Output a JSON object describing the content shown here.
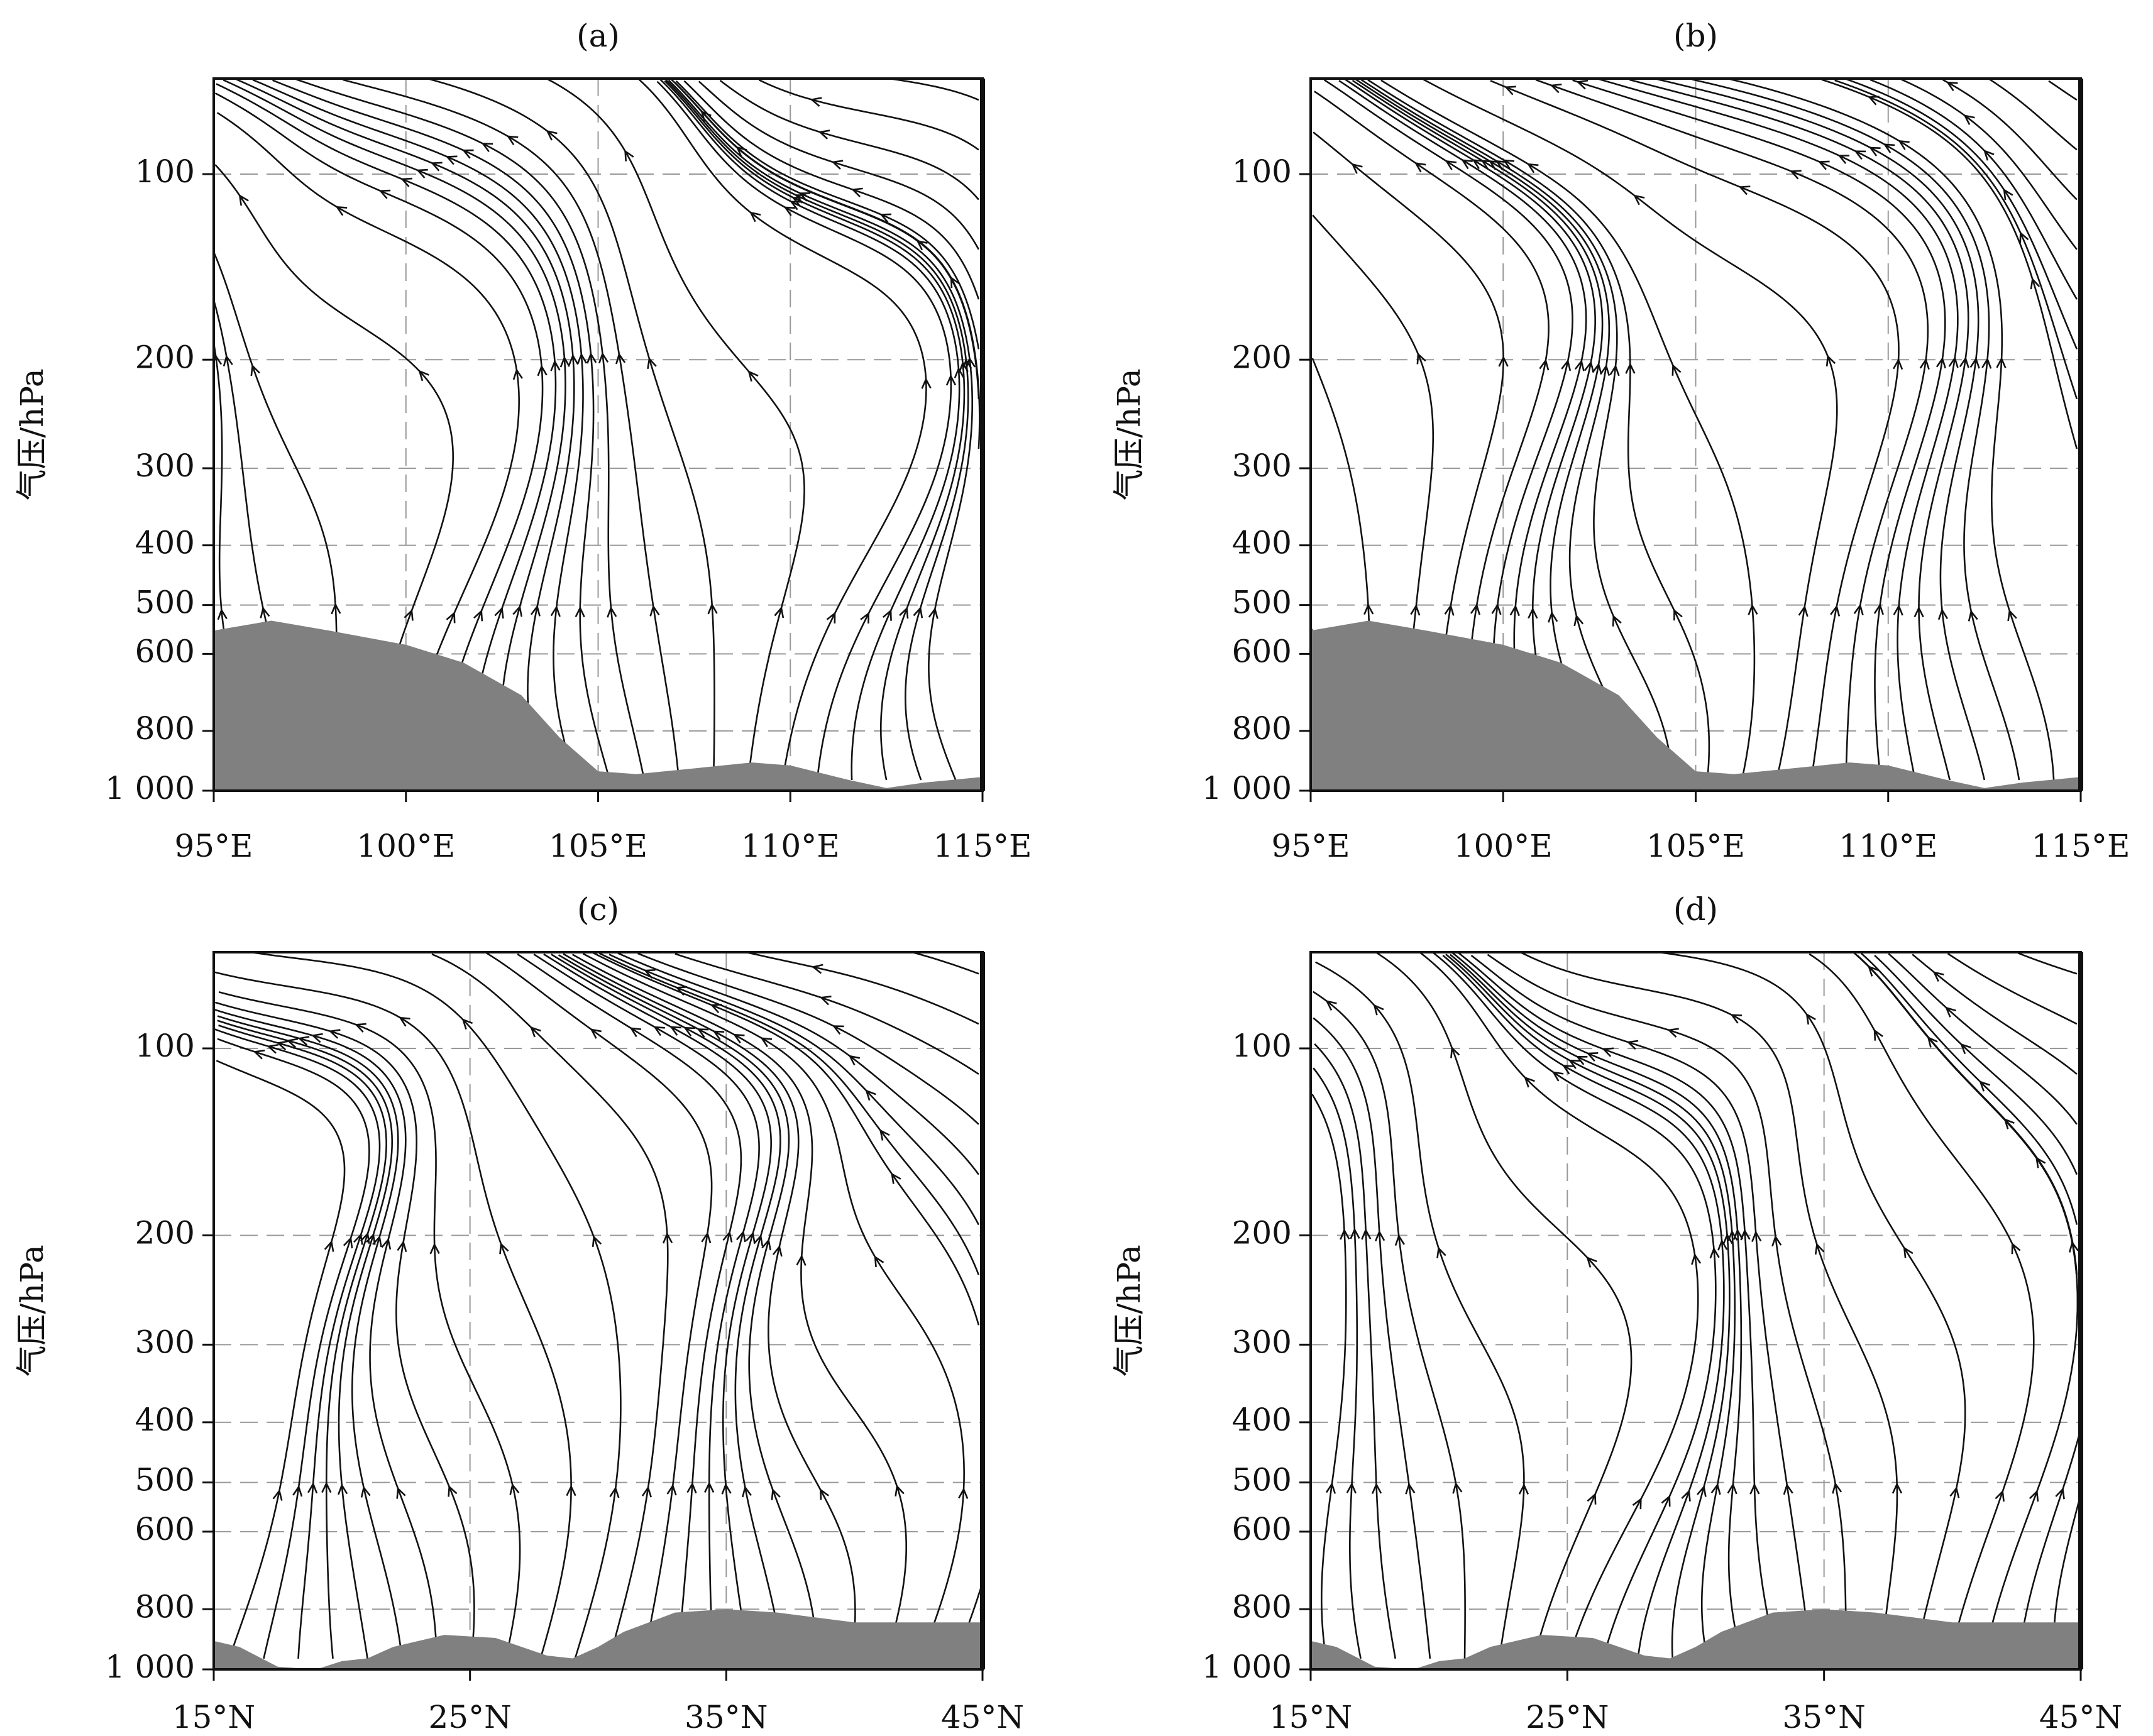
{
  "chart_data": [
    {
      "type": "streamline",
      "title": "(a)",
      "y_label": "气压/hPa",
      "y_scale": "log",
      "grid": true,
      "xlim": [
        95,
        115
      ],
      "xticks": [
        {
          "value": 95,
          "label": "95°E"
        },
        {
          "value": 100,
          "label": "100°E"
        },
        {
          "value": 105,
          "label": "105°E"
        },
        {
          "value": 110,
          "label": "110°E"
        },
        {
          "value": 115,
          "label": "115°E"
        }
      ],
      "ylim": [
        1000,
        70
      ],
      "yticks": [
        100,
        200,
        300,
        400,
        500,
        600,
        800,
        {
          "value": 1000,
          "label": "1 000"
        }
      ],
      "surface": {
        "color": "#808080",
        "x": [
          95,
          96.5,
          98,
          100,
          101.5,
          103,
          104,
          105,
          106,
          107.5,
          109,
          110,
          111.5,
          112.5,
          113.5,
          115
        ],
        "values": [
          550,
          530,
          550,
          580,
          620,
          700,
          820,
          930,
          940,
          920,
          900,
          910,
          960,
          990,
          970,
          950
        ]
      }
    },
    {
      "type": "streamline",
      "title": "(b)",
      "y_label": "气压/hPa",
      "y_scale": "log",
      "grid": true,
      "xlim": [
        95,
        115
      ],
      "xticks": [
        {
          "value": 95,
          "label": "95°E"
        },
        {
          "value": 100,
          "label": "100°E"
        },
        {
          "value": 105,
          "label": "105°E"
        },
        {
          "value": 110,
          "label": "110°E"
        },
        {
          "value": 115,
          "label": "115°E"
        }
      ],
      "ylim": [
        1000,
        70
      ],
      "yticks": [
        100,
        200,
        300,
        400,
        500,
        600,
        800,
        {
          "value": 1000,
          "label": "1 000"
        }
      ],
      "surface": {
        "color": "#808080",
        "x": [
          95,
          96.5,
          98,
          100,
          101.5,
          103,
          104,
          105,
          106,
          107.5,
          109,
          110,
          111.5,
          112.5,
          113.5,
          115
        ],
        "values": [
          550,
          530,
          550,
          580,
          620,
          700,
          820,
          930,
          940,
          920,
          900,
          910,
          960,
          990,
          970,
          950
        ]
      }
    },
    {
      "type": "streamline",
      "title": "(c)",
      "y_label": "气压/hPa",
      "y_scale": "log",
      "grid": true,
      "xlim": [
        15,
        45
      ],
      "xticks": [
        {
          "value": 15,
          "label": "15°N"
        },
        {
          "value": 25,
          "label": "25°N"
        },
        {
          "value": 35,
          "label": "35°N"
        },
        {
          "value": 45,
          "label": "45°N"
        }
      ],
      "ylim": [
        1000,
        70
      ],
      "yticks": [
        100,
        200,
        300,
        400,
        500,
        600,
        800,
        {
          "value": 1000,
          "label": "1 000"
        }
      ],
      "surface": {
        "color": "#808080",
        "x": [
          15,
          16,
          17.5,
          19,
          20,
          21,
          22,
          24,
          26,
          28,
          29,
          30,
          31,
          33,
          35,
          37,
          40,
          45
        ],
        "values": [
          900,
          920,
          990,
          1000,
          970,
          960,
          920,
          880,
          890,
          950,
          960,
          920,
          870,
          810,
          800,
          810,
          840,
          840
        ]
      }
    },
    {
      "type": "streamline",
      "title": "(d)",
      "y_label": "气压/hPa",
      "y_scale": "log",
      "grid": true,
      "xlim": [
        15,
        45
      ],
      "xticks": [
        {
          "value": 15,
          "label": "15°N"
        },
        {
          "value": 25,
          "label": "25°N"
        },
        {
          "value": 35,
          "label": "35°N"
        },
        {
          "value": 45,
          "label": "45°N"
        }
      ],
      "ylim": [
        1000,
        70
      ],
      "yticks": [
        100,
        200,
        300,
        400,
        500,
        600,
        800,
        {
          "value": 1000,
          "label": "1 000"
        }
      ],
      "surface": {
        "color": "#808080",
        "x": [
          15,
          16,
          17.5,
          19,
          20,
          21,
          22,
          24,
          26,
          28,
          29,
          30,
          31,
          33,
          35,
          37,
          40,
          45
        ],
        "values": [
          900,
          920,
          990,
          1000,
          970,
          960,
          920,
          880,
          890,
          950,
          960,
          920,
          870,
          810,
          800,
          810,
          840,
          840
        ]
      }
    }
  ]
}
